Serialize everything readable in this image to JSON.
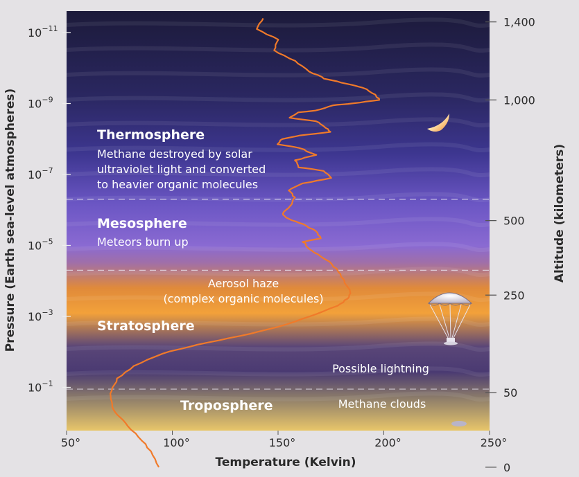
{
  "chart_data": {
    "type": "line",
    "title": "",
    "xlabel": "Temperature (Kelvin)",
    "ylabel_left": "Pressure (Earth sea-level atmospheres)",
    "ylabel_right": "Altitude (kilometers)",
    "xlim": [
      50,
      250
    ],
    "x_ticks": [
      {
        "value": 50,
        "label": "50°"
      },
      {
        "value": 100,
        "label": "100°"
      },
      {
        "value": 150,
        "label": "150°"
      },
      {
        "value": 200,
        "label": "200°"
      },
      {
        "value": 250,
        "label": "250°"
      }
    ],
    "y_left_ticks": [
      {
        "exp": -11,
        "base": "10",
        "sup": "−11"
      },
      {
        "exp": -9,
        "base": "10",
        "sup": "−9"
      },
      {
        "exp": -7,
        "base": "10",
        "sup": "−7"
      },
      {
        "exp": -5,
        "base": "10",
        "sup": "−5"
      },
      {
        "exp": -3,
        "base": "10",
        "sup": "−3"
      },
      {
        "exp": -1,
        "base": "10",
        "sup": "−1"
      }
    ],
    "y_right_ticks": [
      {
        "label": "1,400",
        "exp": -11.3
      },
      {
        "label": "1,000",
        "exp": -9.1
      },
      {
        "label": "500",
        "exp": -5.7
      },
      {
        "label": "250",
        "exp": -3.6
      },
      {
        "label": "50",
        "exp": -0.85
      },
      {
        "label": "0",
        "exp": 1.25
      }
    ],
    "layer_boundaries_exp": [
      -6.3,
      -4.3,
      -0.95
    ],
    "layers": [
      {
        "name": "Thermosphere",
        "note_lines": [
          "Methane destroyed by solar",
          "ultraviolet light and converted",
          "to heavier organic molecules"
        ]
      },
      {
        "name": "Mesosphere",
        "note_lines": [
          "Meteors burn up"
        ]
      },
      {
        "name": "Stratosphere",
        "note_lines": []
      },
      {
        "name": "Troposphere",
        "note_lines": []
      }
    ],
    "annotations": [
      {
        "id": "aerosol",
        "lines": [
          "Aerosol haze",
          "(complex organic molecules)"
        ]
      },
      {
        "id": "lightning",
        "lines": [
          "Possible lightning"
        ]
      },
      {
        "id": "clouds",
        "lines": [
          "Methane clouds"
        ]
      }
    ],
    "series": [
      {
        "color": "#f07a2a",
        "points": [
          {
            "t": 143,
            "p": -11.4
          },
          {
            "t": 140,
            "p": -11.1
          },
          {
            "t": 150,
            "p": -10.8
          },
          {
            "t": 148,
            "p": -10.5
          },
          {
            "t": 158,
            "p": -10.2
          },
          {
            "t": 165,
            "p": -9.9
          },
          {
            "t": 172,
            "p": -9.7
          },
          {
            "t": 183,
            "p": -9.55
          },
          {
            "t": 190,
            "p": -9.45
          },
          {
            "t": 196,
            "p": -9.25
          },
          {
            "t": 198,
            "p": -9.1
          },
          {
            "t": 185,
            "p": -9.0
          },
          {
            "t": 176,
            "p": -8.95
          },
          {
            "t": 168,
            "p": -8.8
          },
          {
            "t": 160,
            "p": -8.75
          },
          {
            "t": 155,
            "p": -8.6
          },
          {
            "t": 168,
            "p": -8.5
          },
          {
            "t": 172,
            "p": -8.35
          },
          {
            "t": 175,
            "p": -8.2
          },
          {
            "t": 160,
            "p": -8.1
          },
          {
            "t": 152,
            "p": -8.0
          },
          {
            "t": 150,
            "p": -7.85
          },
          {
            "t": 160,
            "p": -7.75
          },
          {
            "t": 168,
            "p": -7.55
          },
          {
            "t": 158,
            "p": -7.4
          },
          {
            "t": 160,
            "p": -7.2
          },
          {
            "t": 172,
            "p": -7.1
          },
          {
            "t": 175,
            "p": -6.9
          },
          {
            "t": 162,
            "p": -6.75
          },
          {
            "t": 155,
            "p": -6.55
          },
          {
            "t": 158,
            "p": -6.35
          },
          {
            "t": 156,
            "p": -6.1
          },
          {
            "t": 152,
            "p": -5.9
          },
          {
            "t": 155,
            "p": -5.75
          },
          {
            "t": 162,
            "p": -5.6
          },
          {
            "t": 168,
            "p": -5.4
          },
          {
            "t": 170,
            "p": -5.2
          },
          {
            "t": 162,
            "p": -5.1
          },
          {
            "t": 165,
            "p": -4.9
          },
          {
            "t": 170,
            "p": -4.7
          },
          {
            "t": 175,
            "p": -4.5
          },
          {
            "t": 178,
            "p": -4.3
          },
          {
            "t": 180,
            "p": -4.1
          },
          {
            "t": 182,
            "p": -3.9
          },
          {
            "t": 184,
            "p": -3.7
          },
          {
            "t": 183,
            "p": -3.5
          },
          {
            "t": 178,
            "p": -3.3
          },
          {
            "t": 165,
            "p": -3.0
          },
          {
            "t": 150,
            "p": -2.7
          },
          {
            "t": 132,
            "p": -2.45
          },
          {
            "t": 112,
            "p": -2.2
          },
          {
            "t": 95,
            "p": -1.95
          },
          {
            "t": 82,
            "p": -1.6
          },
          {
            "t": 74,
            "p": -1.25
          },
          {
            "t": 71,
            "p": -0.9
          },
          {
            "t": 71,
            "p": -0.6
          },
          {
            "t": 73,
            "p": -0.3
          },
          {
            "t": 78,
            "p": 0.0
          },
          {
            "t": 84,
            "p": 0.4
          },
          {
            "t": 90,
            "p": 0.8
          },
          {
            "t": 94,
            "p": 1.25
          }
        ]
      }
    ]
  }
}
